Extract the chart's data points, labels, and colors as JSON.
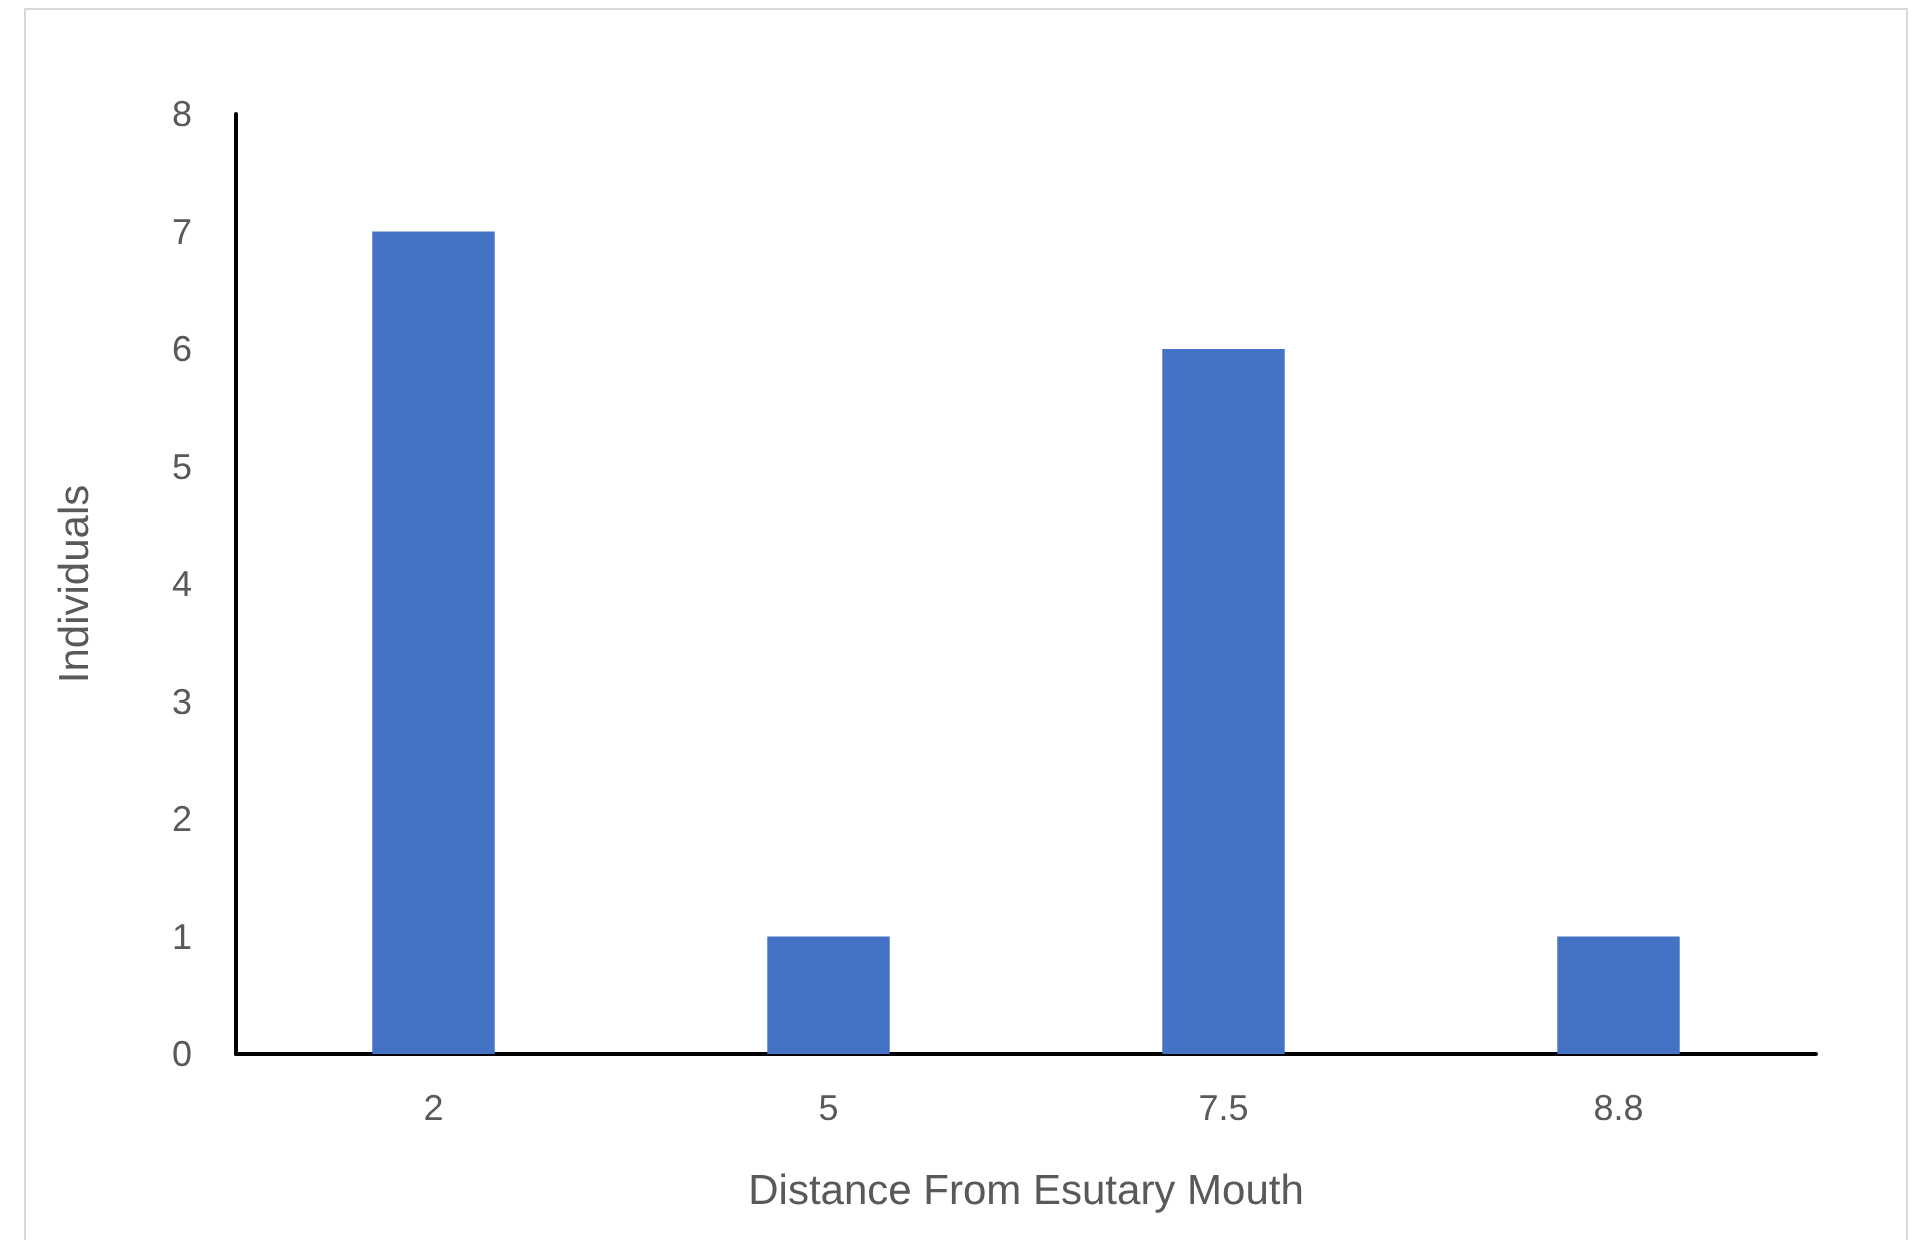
{
  "chart_data": {
    "type": "bar",
    "xlabel": "Distance From Esutary Mouth",
    "ylabel": "Individuals",
    "categories": [
      "2",
      "5",
      "7.5",
      "8.8"
    ],
    "values": [
      7,
      1,
      6,
      1
    ],
    "color": "#4472c4",
    "ylim": [
      0,
      8
    ],
    "yticks": [
      0,
      1,
      2,
      3,
      4,
      5,
      6,
      7,
      8
    ],
    "grid": false
  }
}
